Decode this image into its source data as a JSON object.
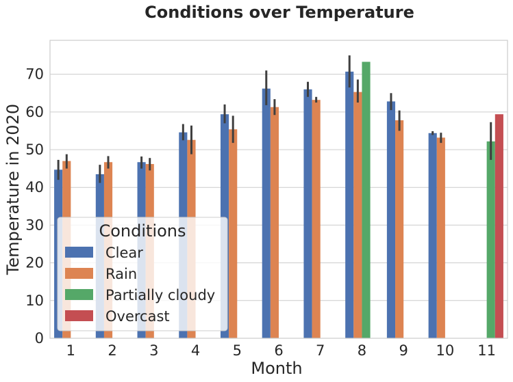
{
  "chart_data": {
    "type": "bar",
    "title": "Conditions over Temperature",
    "xlabel": "Month",
    "ylabel": "Temperature in 2020",
    "ylim": [
      0,
      79
    ],
    "yticks": [
      0,
      10,
      20,
      30,
      40,
      50,
      60,
      70
    ],
    "grid": true,
    "legend": {
      "title": "Conditions",
      "placement": "lower-left"
    },
    "categories": [
      "1",
      "2",
      "3",
      "4",
      "5",
      "6",
      "7",
      "8",
      "9",
      "10",
      "11"
    ],
    "series": [
      {
        "name": "Clear",
        "color": "#4c72b0",
        "values": [
          44.7,
          43.5,
          46.7,
          54.6,
          59.4,
          66.2,
          66.0,
          70.7,
          62.8,
          54.4,
          null
        ],
        "err_low": [
          42.0,
          41.2,
          45.0,
          52.5,
          57.0,
          61.8,
          64.0,
          66.5,
          60.5,
          53.9,
          null
        ],
        "err_high": [
          47.3,
          46.0,
          48.2,
          56.8,
          62.0,
          71.0,
          68.0,
          75.0,
          65.0,
          54.9,
          null
        ]
      },
      {
        "name": "Rain",
        "color": "#dd8452",
        "values": [
          47.0,
          46.7,
          46.2,
          52.6,
          55.4,
          61.3,
          63.2,
          65.3,
          57.8,
          53.2,
          null
        ],
        "err_low": [
          45.0,
          45.0,
          44.5,
          48.8,
          51.8,
          59.2,
          62.5,
          62.5,
          55.0,
          51.8,
          null
        ],
        "err_high": [
          48.8,
          48.3,
          47.8,
          56.4,
          59.0,
          63.4,
          64.0,
          68.6,
          60.4,
          54.5,
          null
        ]
      },
      {
        "name": "Partially cloudy",
        "color": "#55a868",
        "values": [
          null,
          null,
          null,
          null,
          null,
          null,
          null,
          73.3,
          null,
          null,
          52.2
        ],
        "err_low": [
          null,
          null,
          null,
          null,
          null,
          null,
          null,
          null,
          null,
          null,
          47.3
        ],
        "err_high": [
          null,
          null,
          null,
          null,
          null,
          null,
          null,
          null,
          null,
          null,
          57.3
        ]
      },
      {
        "name": "Overcast",
        "color": "#c44e52",
        "values": [
          null,
          null,
          null,
          null,
          null,
          null,
          null,
          null,
          null,
          null,
          59.4
        ],
        "err_low": [
          null,
          null,
          null,
          null,
          null,
          null,
          null,
          null,
          null,
          null,
          null
        ],
        "err_high": [
          null,
          null,
          null,
          null,
          null,
          null,
          null,
          null,
          null,
          null,
          null
        ]
      }
    ]
  }
}
